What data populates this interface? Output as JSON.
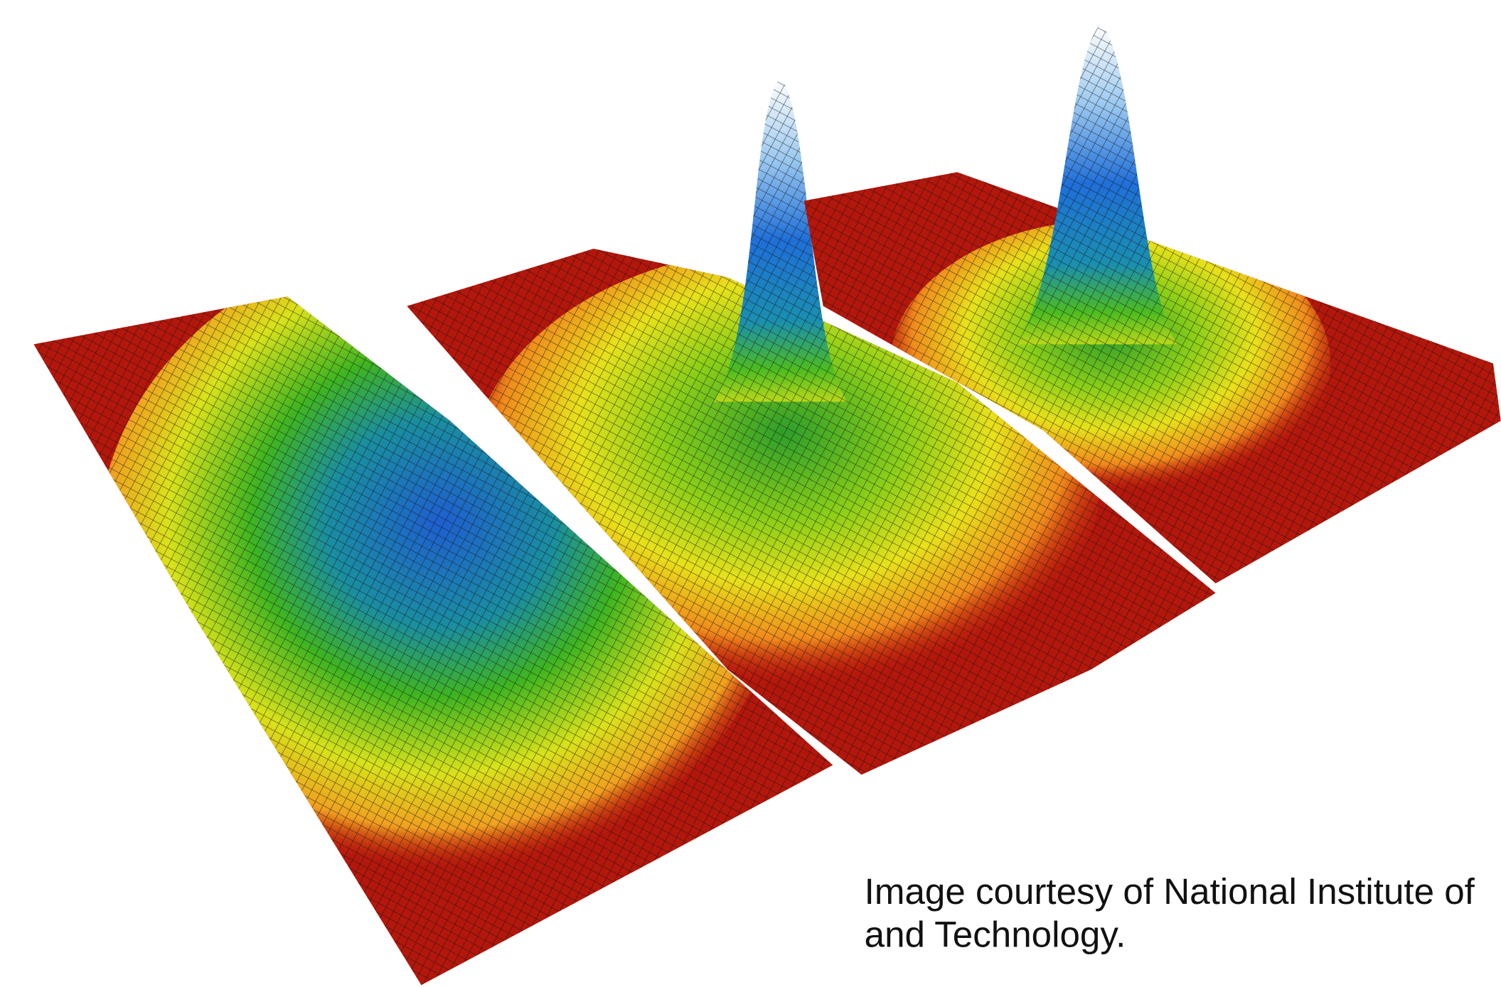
{
  "caption": {
    "lines": [
      "Image courtesy of National Institute of",
      "and Technology."
    ]
  }
}
